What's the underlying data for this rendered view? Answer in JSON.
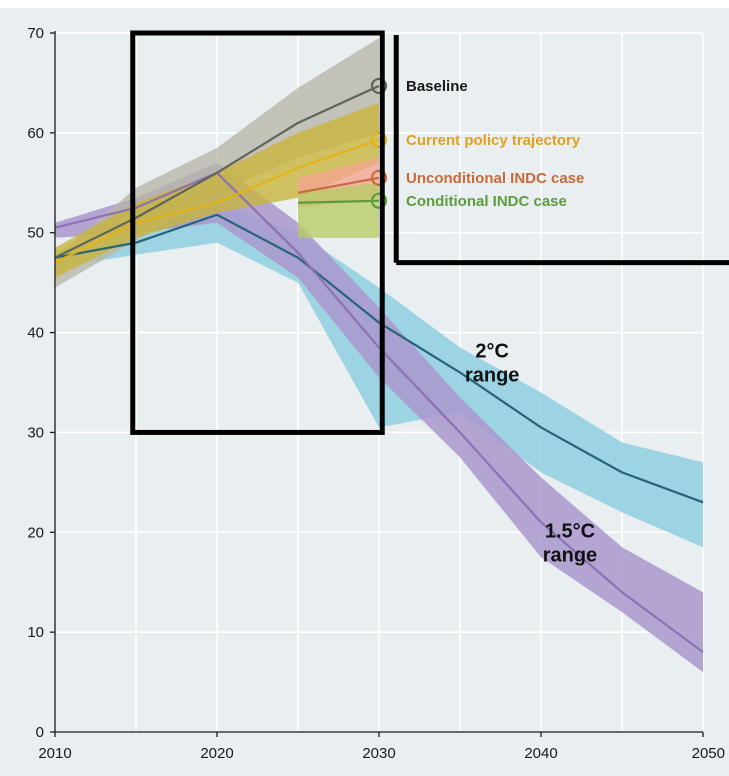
{
  "chart_data": {
    "type": "line",
    "title": "",
    "xlabel": "",
    "ylabel": "",
    "xlim": [
      2010,
      2050
    ],
    "ylim": [
      0,
      70
    ],
    "x_ticks": [
      2010,
      2020,
      2030,
      2040,
      2050
    ],
    "y_ticks": [
      0,
      10,
      20,
      30,
      40,
      50,
      60,
      70
    ],
    "grid": true,
    "background_color": "#e9eef1",
    "colors": {
      "baseline": "#5f6459",
      "baseline_band": "#b7b6a8",
      "current_policy": "#e3b21b",
      "current_policy_band": "#c8b53a",
      "unconditional": "#c86a3a",
      "unconditional_band": "#f3a48f",
      "conditional": "#5d9c3c",
      "conditional_band": "#b7cc63",
      "two_deg": "#286478",
      "two_deg_band": "#8ecfe0",
      "one_five_deg": "#8d72b3",
      "one_five_deg_band": "#a996cc",
      "highlight_box": "#000000"
    },
    "bands": [
      {
        "key": "two_deg",
        "x": [
          2010,
          2015,
          2020,
          2025,
          2030,
          2035,
          2040,
          2045,
          2050
        ],
        "low": [
          46.5,
          47.8,
          49,
          45,
          30.5,
          32,
          26,
          22,
          18.5
        ],
        "high": [
          48.2,
          50,
          53,
          50,
          44.5,
          38.5,
          34,
          29,
          27
        ]
      },
      {
        "key": "one_five_deg",
        "x": [
          2010,
          2015,
          2020,
          2025,
          2030,
          2035,
          2040,
          2045,
          2050
        ],
        "low": [
          49.5,
          50,
          51,
          45.5,
          35.5,
          27.5,
          17.5,
          12,
          6
        ],
        "high": [
          51,
          53.5,
          57,
          51,
          42.5,
          33.5,
          25.5,
          18.5,
          14
        ]
      },
      {
        "key": "baseline",
        "x": [
          2010,
          2015,
          2020,
          2025,
          2030
        ],
        "low": [
          44.5,
          49.2,
          54,
          57.5,
          60
        ],
        "high": [
          47.5,
          54.5,
          58.5,
          64.5,
          69.5
        ]
      },
      {
        "key": "current_policy",
        "x": [
          2010,
          2015,
          2020,
          2025,
          2030
        ],
        "low": [
          45.5,
          49.5,
          52,
          53.5,
          57
        ],
        "high": [
          48.5,
          53,
          56,
          60,
          63
        ]
      },
      {
        "key": "unconditional",
        "x": [
          2025,
          2030
        ],
        "low": [
          52.5,
          53.5
        ],
        "high": [
          55.5,
          57.5
        ]
      },
      {
        "key": "conditional",
        "x": [
          2025,
          2030
        ],
        "low": [
          49.5,
          49.5
        ],
        "high": [
          54,
          55
        ]
      }
    ],
    "series": [
      {
        "key": "two_deg",
        "x": [
          2010,
          2015,
          2020,
          2025,
          2030,
          2035,
          2040,
          2045,
          2050
        ],
        "y": [
          47.5,
          49,
          51.8,
          47.5,
          41,
          36,
          30.5,
          26,
          23
        ]
      },
      {
        "key": "one_five_deg",
        "x": [
          2010,
          2015,
          2020,
          2025,
          2030,
          2035,
          2040,
          2045,
          2050
        ],
        "y": [
          50.5,
          52.5,
          56,
          48,
          38.5,
          30,
          21,
          14,
          8
        ]
      },
      {
        "key": "baseline",
        "name": "Baseline",
        "x": [
          2010,
          2015,
          2020,
          2025,
          2030
        ],
        "y": [
          47.5,
          51.5,
          56,
          61,
          64.7
        ]
      },
      {
        "key": "current_policy",
        "name": "Current policy trajectory",
        "x": [
          2010,
          2015,
          2020,
          2025,
          2030
        ],
        "y": [
          47,
          51,
          53,
          56.5,
          59.3
        ]
      },
      {
        "key": "unconditional",
        "name": "Unconditional INDC case",
        "x": [
          2025,
          2030
        ],
        "y": [
          54,
          55.5
        ]
      },
      {
        "key": "conditional",
        "name": "Conditional INDC case",
        "x": [
          2025,
          2030
        ],
        "y": [
          53,
          53.2
        ]
      }
    ],
    "endpoint_markers": [
      {
        "key": "baseline",
        "x": 2030,
        "y": 64.7
      },
      {
        "key": "current_policy",
        "x": 2030,
        "y": 59.3
      },
      {
        "key": "unconditional",
        "x": 2030,
        "y": 55.5
      },
      {
        "key": "conditional",
        "x": 2030,
        "y": 53.2
      }
    ],
    "legend": [
      {
        "key": "baseline",
        "label": "Baseline",
        "y": 64.7,
        "color": "#1a1a1a"
      },
      {
        "key": "current_policy",
        "label": "Current policy trajectory",
        "y": 59.3,
        "color": "#e0a020"
      },
      {
        "key": "unconditional",
        "label": "Unconditional INDC case",
        "y": 55.5,
        "color": "#c86a3a"
      },
      {
        "key": "conditional",
        "label": "Conditional INDC case",
        "y": 53.2,
        "color": "#5d9c3c"
      }
    ],
    "range_labels": [
      {
        "key": "two_deg",
        "lines": [
          "2°C",
          "range"
        ],
        "x": 2036,
        "y": 37.5
      },
      {
        "key": "one_five_deg",
        "lines": [
          "1.5°C",
          "range"
        ],
        "x": 2040.8,
        "y": 19.5
      }
    ],
    "highlight": {
      "box_x": [
        2014.8,
        2030.2
      ],
      "box_y": [
        30,
        70
      ],
      "connector_y": 47
    }
  }
}
